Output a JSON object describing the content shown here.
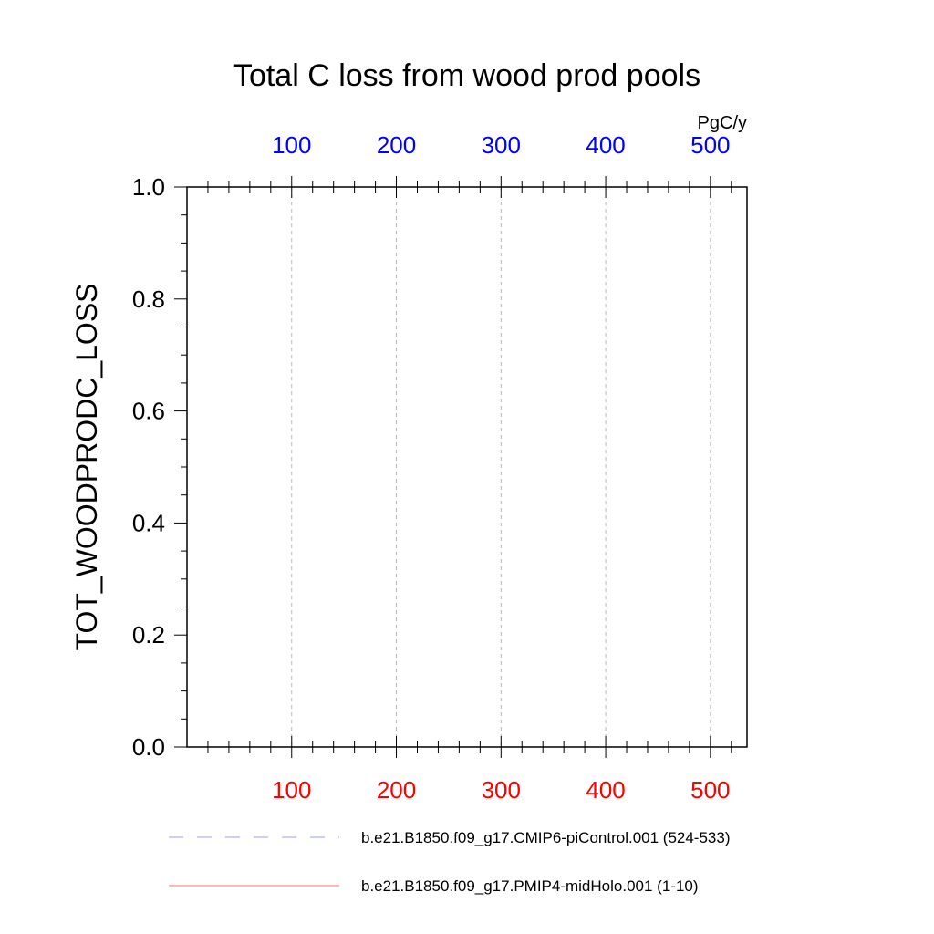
{
  "chart_data": {
    "type": "line",
    "title": "Total C loss from wood prod pools",
    "ylabel": "TOT_WOODPRODC_LOSS",
    "top_axis_units": "PgC/y",
    "xlim": [
      0,
      535
    ],
    "ylim": [
      0,
      1
    ],
    "x_ticks": [
      100,
      200,
      300,
      400,
      500
    ],
    "x_tick_labels": [
      "100",
      "200",
      "300",
      "400",
      "500"
    ],
    "y_ticks": [
      0,
      0.2,
      0.4,
      0.6,
      0.8,
      1.0
    ],
    "y_tick_labels": [
      "0.0",
      "0.2",
      "0.4",
      "0.6",
      "0.8",
      "1.0"
    ],
    "grid": "vertical dashed at major x ticks",
    "bottom_axis_color": "#ff0000",
    "top_axis_color": "#0000ff",
    "series": [
      {
        "name": "b.e21.B1850.f09_g17.CMIP6-piControl.001 (524-533)",
        "color": "#9b9bff",
        "dash": "dashed",
        "values": []
      },
      {
        "name": "b.e21.B1850.f09_g17.PMIP4-midHolo.001 (1-10)",
        "color": "#ff7070",
        "dash": "solid",
        "values": []
      }
    ],
    "legend_placement": "bottom"
  }
}
